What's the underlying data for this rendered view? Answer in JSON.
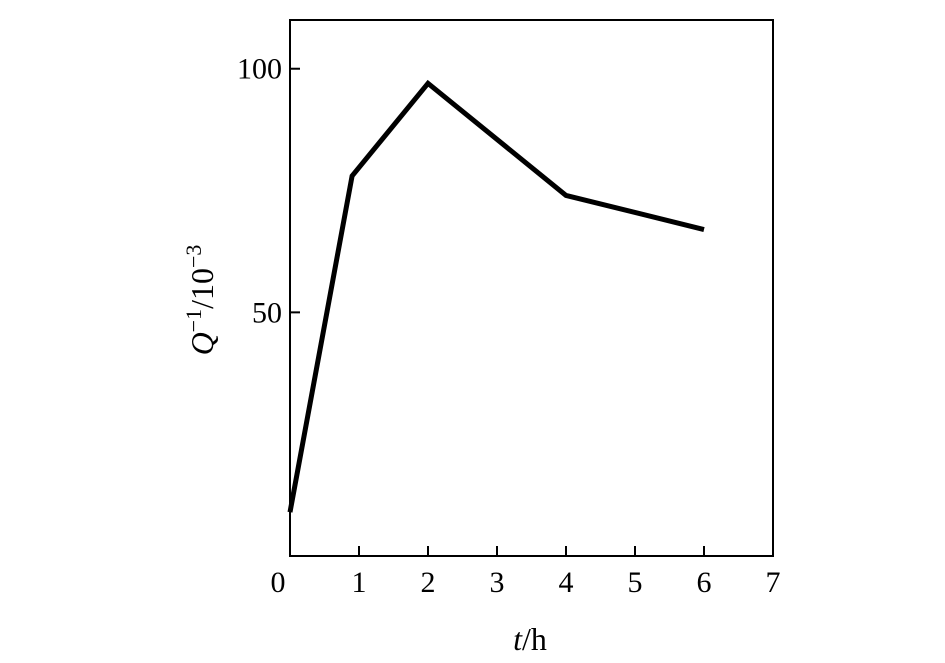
{
  "chart_data": {
    "type": "line",
    "title": "",
    "xlabel": {
      "var": "t",
      "unit": "/h"
    },
    "ylabel": {
      "var": "Q",
      "sup1": "−1",
      "mid": "/10",
      "sup2": "−3"
    },
    "xlim": [
      0,
      7
    ],
    "ylim": [
      0,
      110
    ],
    "xticks": [
      0,
      1,
      2,
      3,
      4,
      5,
      6,
      7
    ],
    "yticks": [
      0,
      50,
      100
    ],
    "grid": false,
    "series": [
      {
        "x": [
          0,
          0.9,
          2,
          4,
          6
        ],
        "y": [
          9,
          78,
          97,
          74,
          67
        ]
      }
    ]
  }
}
